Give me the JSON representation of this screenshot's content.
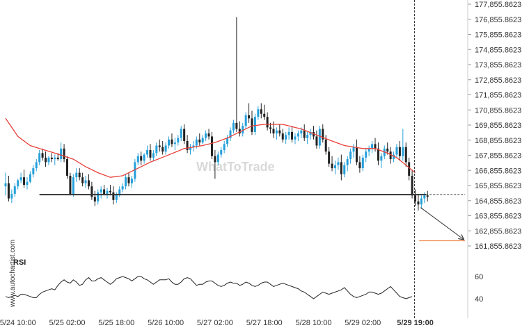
{
  "chart_data": [
    {
      "type": "candlestick",
      "y_ticks": [
        "177,855.8623",
        "176,855.8623",
        "175,855.8623",
        "174,855.8623",
        "173,855.8623",
        "172,855.8623",
        "171,855.8623",
        "170,855.8623",
        "169,855.8623",
        "168,855.8623",
        "167,855.8623",
        "166,855.8623",
        "165,855.8623",
        "164,855.8623",
        "163,855.8623",
        "162,855.8623",
        "161,855.8623"
      ],
      "ylim": [
        161855.8623,
        177855.8623
      ],
      "x_ticks": [
        "5/24 10:00",
        "5/25 02:00",
        "5/25 18:00",
        "5/26 10:00",
        "5/27 02:00",
        "5/27 18:00",
        "5/28 10:00",
        "5/29 02:00",
        "5/29 19:00"
      ],
      "x_tick_index": [
        4,
        20,
        36,
        52,
        68,
        84,
        100,
        116,
        133
      ],
      "highlight_x_tick": "5/29 19:00",
      "support_level": 165250,
      "target_level": 162200,
      "moving_average_color": "#e8403b",
      "up_color": "#26a0da",
      "down_color": "#222222",
      "candles": [
        [
          165800,
          166700,
          165200,
          166000
        ],
        [
          166000,
          166500,
          164800,
          165000
        ],
        [
          165000,
          165600,
          164700,
          165300
        ],
        [
          165300,
          166000,
          165100,
          165800
        ],
        [
          165800,
          166300,
          165600,
          166200
        ],
        [
          166200,
          166700,
          166000,
          166400
        ],
        [
          166400,
          166900,
          165700,
          165900
        ],
        [
          165900,
          166400,
          165600,
          166100
        ],
        [
          166100,
          166800,
          166000,
          166600
        ],
        [
          166600,
          167200,
          166400,
          167000
        ],
        [
          167000,
          167600,
          166800,
          167400
        ],
        [
          167400,
          168200,
          167200,
          168000
        ],
        [
          168000,
          168300,
          167500,
          167700
        ],
        [
          167700,
          168100,
          167100,
          167400
        ],
        [
          167400,
          167800,
          167200,
          167700
        ],
        [
          167700,
          168000,
          167400,
          167600
        ],
        [
          167600,
          167900,
          167200,
          167700
        ],
        [
          167700,
          168000,
          167500,
          167600
        ],
        [
          167600,
          168700,
          167400,
          168300
        ],
        [
          168300,
          168600,
          167400,
          167600
        ],
        [
          167600,
          167800,
          166300,
          166500
        ],
        [
          166500,
          166700,
          165200,
          165300
        ],
        [
          165300,
          166600,
          165100,
          166400
        ],
        [
          166400,
          167000,
          166100,
          166700
        ],
        [
          166700,
          167000,
          166200,
          166400
        ],
        [
          166400,
          166700,
          165800,
          166000
        ],
        [
          166000,
          166500,
          165700,
          166200
        ],
        [
          166200,
          166600,
          165600,
          165800
        ],
        [
          165800,
          166100,
          164900,
          165100
        ],
        [
          165100,
          165500,
          164500,
          164800
        ],
        [
          164800,
          165600,
          164600,
          165400
        ],
        [
          165400,
          165800,
          165000,
          165600
        ],
        [
          165600,
          165900,
          165200,
          165300
        ],
        [
          165300,
          165700,
          165000,
          165500
        ],
        [
          165500,
          165900,
          165200,
          165400
        ],
        [
          165400,
          165800,
          164600,
          164900
        ],
        [
          164900,
          165400,
          164700,
          165300
        ],
        [
          165300,
          165800,
          165100,
          165600
        ],
        [
          165600,
          166000,
          165400,
          165800
        ],
        [
          165800,
          166600,
          165600,
          166400
        ],
        [
          166400,
          166700,
          165800,
          166000
        ],
        [
          166000,
          166500,
          165700,
          166300
        ],
        [
          166300,
          167600,
          166100,
          167400
        ],
        [
          167400,
          168000,
          167200,
          167800
        ],
        [
          167800,
          168100,
          167200,
          167500
        ],
        [
          167500,
          168000,
          167300,
          167900
        ],
        [
          167900,
          168500,
          167700,
          168200
        ],
        [
          168200,
          168600,
          167500,
          167700
        ],
        [
          167700,
          168200,
          167500,
          168000
        ],
        [
          168000,
          168700,
          167800,
          168500
        ],
        [
          168500,
          168900,
          168100,
          168400
        ],
        [
          168400,
          168800,
          167900,
          168100
        ],
        [
          168100,
          168700,
          167900,
          168500
        ],
        [
          168500,
          169100,
          168300,
          168900
        ],
        [
          168900,
          169300,
          168400,
          168600
        ],
        [
          168600,
          169000,
          168200,
          168700
        ],
        [
          168700,
          169200,
          168500,
          169000
        ],
        [
          169000,
          169800,
          168800,
          169600
        ],
        [
          169600,
          169900,
          168600,
          168800
        ],
        [
          168800,
          169200,
          168000,
          168200
        ],
        [
          168200,
          168600,
          167900,
          168400
        ],
        [
          168400,
          168800,
          168100,
          168500
        ],
        [
          168500,
          169100,
          168300,
          168900
        ],
        [
          168900,
          169300,
          168500,
          168700
        ],
        [
          168700,
          169200,
          168600,
          169000
        ],
        [
          169000,
          169500,
          168800,
          169300
        ],
        [
          169300,
          169600,
          168900,
          169100
        ],
        [
          169100,
          169400,
          167600,
          167800
        ],
        [
          167800,
          168200,
          166300,
          167400
        ],
        [
          167400,
          168100,
          167200,
          167900
        ],
        [
          167900,
          168400,
          167700,
          168200
        ],
        [
          168200,
          168800,
          168000,
          168600
        ],
        [
          168600,
          169200,
          168400,
          169000
        ],
        [
          169000,
          169700,
          168800,
          169500
        ],
        [
          169500,
          170200,
          169300,
          170000
        ],
        [
          170000,
          177000,
          169400,
          169600
        ],
        [
          169600,
          170100,
          169100,
          169300
        ],
        [
          169300,
          170000,
          169100,
          169800
        ],
        [
          169800,
          170700,
          169600,
          170500
        ],
        [
          170500,
          171300,
          170000,
          170300
        ],
        [
          170300,
          170800,
          169200,
          169400
        ],
        [
          169400,
          170600,
          169200,
          170400
        ],
        [
          170400,
          171100,
          170200,
          170900
        ],
        [
          170900,
          171300,
          170300,
          170600
        ],
        [
          170600,
          171200,
          170200,
          170400
        ],
        [
          170400,
          170700,
          169500,
          169700
        ],
        [
          169700,
          170000,
          169300,
          169600
        ],
        [
          169600,
          170100,
          169000,
          169300
        ],
        [
          169300,
          169700,
          168900,
          169500
        ],
        [
          169500,
          169900,
          169100,
          169300
        ],
        [
          169300,
          169600,
          168700,
          168900
        ],
        [
          168900,
          169400,
          168600,
          169200
        ],
        [
          169200,
          169700,
          168900,
          169400
        ],
        [
          169400,
          169800,
          168700,
          168900
        ],
        [
          168900,
          169300,
          168600,
          169100
        ],
        [
          169100,
          169500,
          168800,
          169300
        ],
        [
          169300,
          169700,
          169000,
          169500
        ],
        [
          169500,
          169900,
          168800,
          169000
        ],
        [
          169000,
          169400,
          168600,
          169200
        ],
        [
          169200,
          169600,
          168900,
          169400
        ],
        [
          169400,
          169800,
          168900,
          169100
        ],
        [
          169100,
          169500,
          168300,
          168500
        ],
        [
          168500,
          169800,
          168300,
          169600
        ],
        [
          169600,
          169900,
          168700,
          168900
        ],
        [
          168900,
          169200,
          167900,
          168100
        ],
        [
          168100,
          168400,
          167100,
          167300
        ],
        [
          167300,
          167800,
          166800,
          167000
        ],
        [
          167000,
          167500,
          166600,
          167200
        ],
        [
          167200,
          167700,
          166900,
          167400
        ],
        [
          167400,
          167900,
          166200,
          166600
        ],
        [
          166600,
          167400,
          166400,
          167200
        ],
        [
          167200,
          167800,
          166800,
          167600
        ],
        [
          167600,
          168300,
          167300,
          168100
        ],
        [
          168100,
          168600,
          167700,
          168400
        ],
        [
          168400,
          168900,
          167200,
          167400
        ],
        [
          167400,
          167800,
          166700,
          167000
        ],
        [
          167000,
          167900,
          166800,
          167700
        ],
        [
          167700,
          168300,
          167400,
          168100
        ],
        [
          168100,
          168500,
          167800,
          168300
        ],
        [
          168300,
          168800,
          168000,
          168600
        ],
        [
          168600,
          169000,
          168100,
          168300
        ],
        [
          168300,
          168700,
          167200,
          167500
        ],
        [
          167500,
          168000,
          167000,
          167800
        ],
        [
          167800,
          168500,
          167600,
          168300
        ],
        [
          168300,
          168700,
          167900,
          168100
        ],
        [
          168100,
          168400,
          167300,
          167600
        ],
        [
          167600,
          168100,
          167400,
          167900
        ],
        [
          167900,
          168600,
          167700,
          168400
        ],
        [
          168400,
          168800,
          167500,
          167800
        ],
        [
          167800,
          169600,
          167500,
          168400
        ],
        [
          168400,
          168700,
          167100,
          167400
        ],
        [
          167400,
          167700,
          166200,
          166500
        ],
        [
          166500,
          166900,
          165000,
          165200
        ],
        [
          165200,
          165600,
          164500,
          164800
        ],
        [
          164800,
          165300,
          164200,
          164600
        ],
        [
          164600,
          165200,
          164300,
          165000
        ],
        [
          165000,
          165400,
          164700,
          165200
        ],
        [
          165200,
          165500,
          164800,
          165100
        ]
      ],
      "moving_average": [
        [
          0,
          170300
        ],
        [
          4,
          169100
        ],
        [
          8,
          168500
        ],
        [
          11,
          168300
        ],
        [
          16,
          168000
        ],
        [
          22,
          167600
        ],
        [
          26,
          167100
        ],
        [
          30,
          166700
        ],
        [
          34,
          166400
        ],
        [
          38,
          166500
        ],
        [
          42,
          166900
        ],
        [
          47,
          167400
        ],
        [
          52,
          167800
        ],
        [
          58,
          168300
        ],
        [
          64,
          168500
        ],
        [
          68,
          168700
        ],
        [
          72,
          169000
        ],
        [
          76,
          169400
        ],
        [
          80,
          169800
        ],
        [
          84,
          169900
        ],
        [
          90,
          169900
        ],
        [
          96,
          169600
        ],
        [
          101,
          169200
        ],
        [
          106,
          168800
        ],
        [
          110,
          168500
        ],
        [
          116,
          168300
        ],
        [
          120,
          168300
        ],
        [
          124,
          168000
        ],
        [
          127,
          167700
        ],
        [
          130,
          167200
        ],
        [
          133,
          166700
        ]
      ]
    },
    {
      "type": "line",
      "title": "RSI",
      "y_ticks": [
        "60",
        "40"
      ],
      "ylim": [
        30,
        70
      ],
      "color": "#222222",
      "values": [
        42,
        41,
        42,
        43,
        42,
        44,
        44,
        43,
        42,
        41,
        41,
        44,
        46,
        47,
        48,
        49,
        48,
        52,
        55,
        57,
        55,
        54,
        57,
        55,
        52,
        53,
        57,
        59,
        56,
        56,
        58,
        59,
        57,
        55,
        53,
        55,
        58,
        59,
        60,
        59,
        58,
        56,
        58,
        60,
        60,
        58,
        57,
        55,
        53,
        55,
        57,
        57,
        57,
        58,
        55,
        53,
        53,
        55,
        58,
        59,
        58,
        55,
        52,
        53,
        53,
        55,
        56,
        56,
        54,
        52,
        51,
        52,
        54,
        55,
        54,
        54,
        52,
        53,
        55,
        54,
        52,
        51,
        52,
        54,
        55,
        55,
        53,
        51,
        52,
        53,
        54,
        53,
        52,
        51,
        50,
        49,
        47,
        46,
        44,
        42,
        40,
        42,
        44,
        46,
        45,
        44,
        45,
        46,
        47,
        48,
        50,
        47,
        44,
        42,
        41,
        42,
        43,
        44,
        46,
        46,
        45,
        44,
        45,
        47,
        49,
        51,
        48,
        45,
        42,
        41,
        40,
        41,
        42
      ]
    }
  ],
  "watermark": "WhatToTrade",
  "side_text": "www.autochartist.com"
}
